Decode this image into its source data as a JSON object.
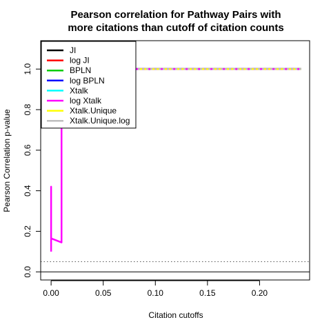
{
  "chart_data": {
    "type": "line",
    "title": [
      "Pearson correlation for Pathway Pairs with",
      "more citations than cutoff of citation counts"
    ],
    "xlabel": "Citation cutoffs",
    "ylabel": "Pearson Correlation p-value",
    "xlim": [
      -0.01,
      0.248
    ],
    "ylim": [
      -0.04,
      1.14
    ],
    "xticks": [
      0.0,
      0.05,
      0.1,
      0.15,
      0.2
    ],
    "xtick_labels": [
      "0.00",
      "0.05",
      "0.10",
      "0.15",
      "0.20"
    ],
    "yticks": [
      0.0,
      0.2,
      0.4,
      0.6,
      0.8,
      1.0
    ],
    "ytick_labels": [
      "0.0",
      "0.2",
      "0.4",
      "0.6",
      "0.8",
      "1.0"
    ],
    "hlines": [
      {
        "y": 0.0,
        "color": "#000000",
        "style": "solid"
      },
      {
        "y": 0.05,
        "color": "#555555",
        "style": "dotted"
      }
    ],
    "legend_position": "top-left",
    "series": [
      {
        "name": "JI",
        "color": "#000000",
        "x": [
          0.0,
          0.24
        ],
        "y": [
          1.0,
          1.0
        ]
      },
      {
        "name": "log JI",
        "color": "#ff0000",
        "x": [
          0.0,
          0.24
        ],
        "y": [
          1.0,
          1.0
        ]
      },
      {
        "name": "BPLN",
        "color": "#00cd00",
        "x": [
          0.0,
          0.24
        ],
        "y": [
          1.0,
          1.0
        ]
      },
      {
        "name": "log BPLN",
        "color": "#0000ff",
        "x": [
          0.0,
          0.24
        ],
        "y": [
          1.0,
          1.0
        ]
      },
      {
        "name": "Xtalk",
        "color": "#00ffff",
        "x": [
          0.0,
          0.24
        ],
        "y": [
          1.0,
          1.0
        ]
      },
      {
        "name": "log Xtalk",
        "color": "#ff00ff",
        "x": [
          0.0,
          0.0,
          0.0,
          0.01,
          0.01,
          0.012,
          0.02,
          0.04,
          0.06,
          0.08,
          0.1,
          0.14,
          0.18,
          0.24
        ],
        "y": [
          0.1,
          0.42,
          0.165,
          0.145,
          0.78,
          1.0,
          1.0,
          1.0,
          1.0,
          1.0,
          1.0,
          1.0,
          1.0,
          1.0
        ]
      },
      {
        "name": "Xtalk.Unique",
        "color": "#ffff00",
        "x": [
          0.0,
          0.24
        ],
        "y": [
          1.0,
          1.0
        ]
      },
      {
        "name": "Xtalk.Unique.log",
        "color": "#bebebe",
        "x": [
          0.0,
          0.24
        ],
        "y": [
          1.0,
          1.0
        ]
      }
    ]
  }
}
